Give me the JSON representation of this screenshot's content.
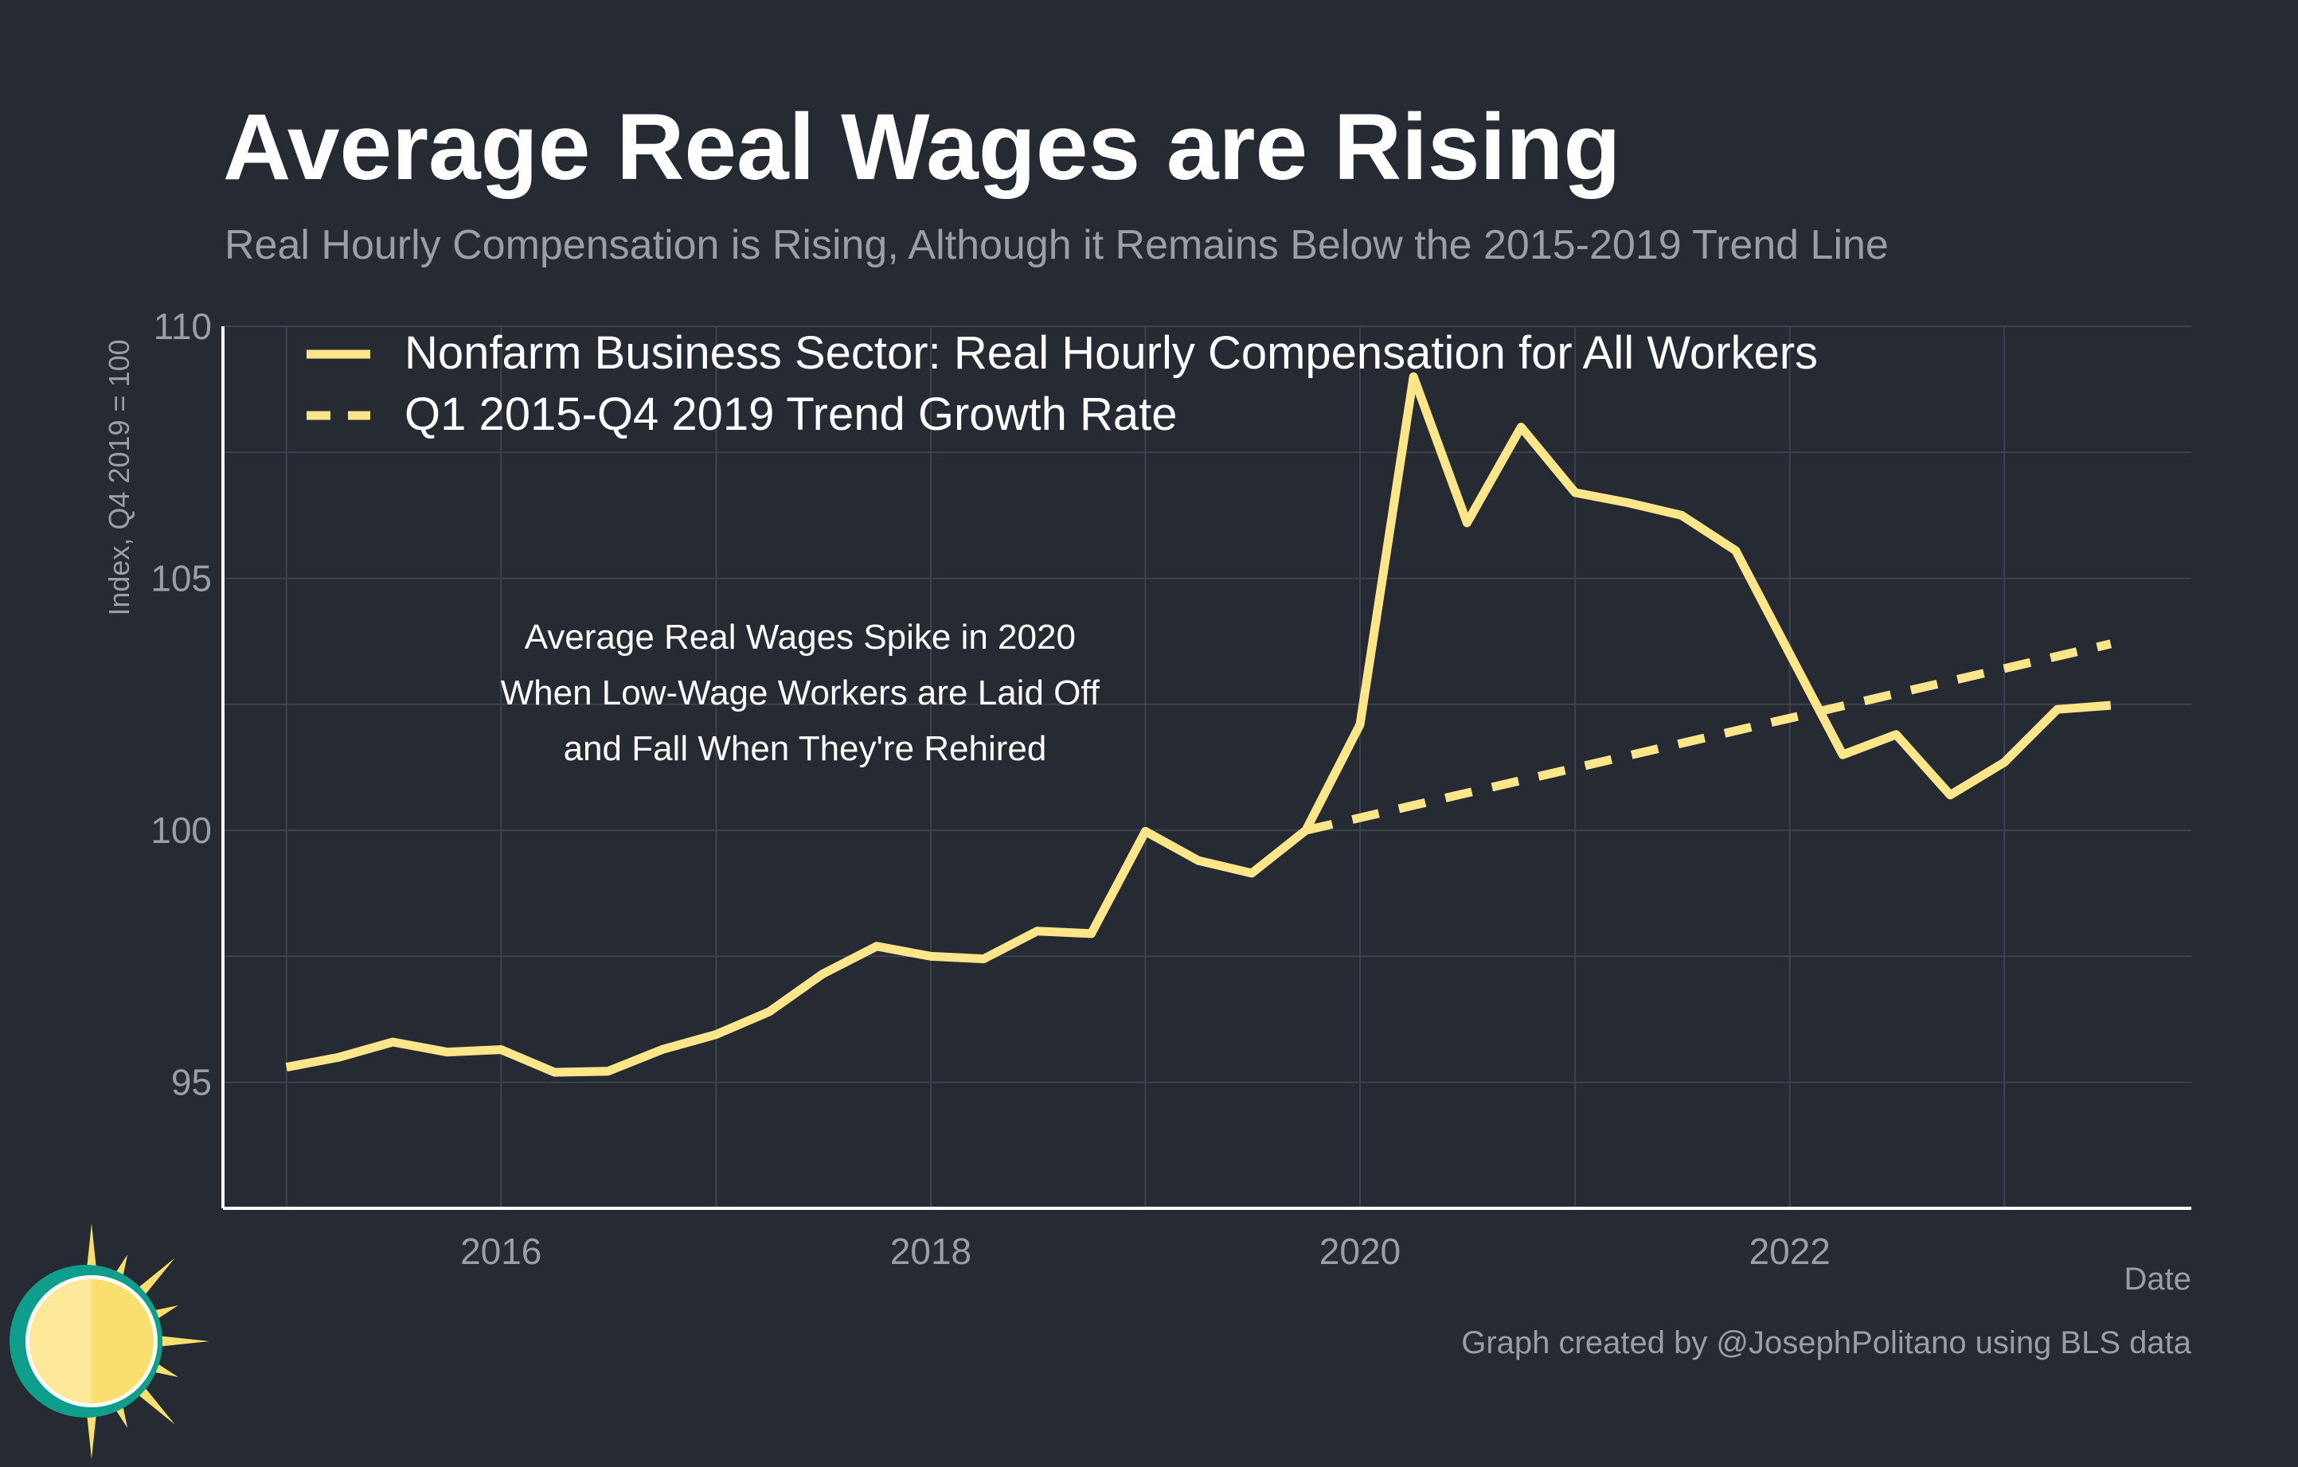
{
  "header": {
    "title": "Average Real Wages are Rising",
    "subtitle": "Real Hourly Compensation is Rising, Although it Remains Below the 2015-2019 Trend Line"
  },
  "footer": {
    "credit": "Graph created by @JosephPolitano using BLS data"
  },
  "colors": {
    "background": "#252a33",
    "series": "#fde68a",
    "grid": "#3d434d",
    "axis": "#ffffff",
    "muted_text": "#9a9ea6",
    "logo_ring": "#0f9e8c",
    "logo_sun": "#f9df6d"
  },
  "logo": {
    "icon": "sun-logo-icon"
  },
  "chart_data": {
    "type": "line",
    "xlabel": "Date",
    "ylabel": "Index, Q4 2019 = 100",
    "xlim": [
      "2014-09-15",
      "2023-11-15"
    ],
    "ylim": [
      92.5,
      110
    ],
    "x_ticks": [
      {
        "date": "2016-01-01",
        "label": "2016"
      },
      {
        "date": "2018-01-01",
        "label": "2018"
      },
      {
        "date": "2020-01-01",
        "label": "2020"
      },
      {
        "date": "2022-01-01",
        "label": "2022"
      }
    ],
    "y_ticks": [
      95,
      100,
      105,
      110
    ],
    "grid": true,
    "legend_position": "top-left",
    "annotation": {
      "lines": [
        "Average Real Wages Spike in 2020",
        "When Low-Wage Workers are Laid Off",
        "and Fall When They're Rehired"
      ],
      "at": {
        "date": "2017-06-01",
        "value": 103.6
      }
    },
    "series": [
      {
        "name": "Nonfarm Business Sector: Real Hourly Compensation for All Workers",
        "style": "solid",
        "points": [
          [
            "2015-01-01",
            95.3
          ],
          [
            "2015-04-01",
            95.5
          ],
          [
            "2015-07-01",
            95.8
          ],
          [
            "2015-10-01",
            95.6
          ],
          [
            "2016-01-01",
            95.65
          ],
          [
            "2016-04-01",
            95.2
          ],
          [
            "2016-07-01",
            95.22
          ],
          [
            "2016-10-01",
            95.65
          ],
          [
            "2017-01-01",
            95.95
          ],
          [
            "2017-04-01",
            96.4
          ],
          [
            "2017-07-01",
            97.15
          ],
          [
            "2017-10-01",
            97.7
          ],
          [
            "2018-01-01",
            97.5
          ],
          [
            "2018-04-01",
            97.45
          ],
          [
            "2018-07-01",
            98.0
          ],
          [
            "2018-10-01",
            97.95
          ],
          [
            "2019-01-01",
            99.98
          ],
          [
            "2019-04-01",
            99.4
          ],
          [
            "2019-07-01",
            99.15
          ],
          [
            "2019-10-01",
            100.0
          ],
          [
            "2020-01-01",
            102.1
          ],
          [
            "2020-04-01",
            109.0
          ],
          [
            "2020-07-01",
            106.1
          ],
          [
            "2020-10-01",
            108.0
          ],
          [
            "2021-01-01",
            106.7
          ],
          [
            "2021-04-01",
            106.5
          ],
          [
            "2021-07-01",
            106.25
          ],
          [
            "2021-10-01",
            105.55
          ],
          [
            "2022-01-01",
            103.5
          ],
          [
            "2022-04-01",
            101.5
          ],
          [
            "2022-07-01",
            101.9
          ],
          [
            "2022-10-01",
            100.7
          ],
          [
            "2023-01-01",
            101.35
          ],
          [
            "2023-04-01",
            102.4
          ],
          [
            "2023-07-01",
            102.48
          ]
        ]
      },
      {
        "name": "Q1 2015-Q4 2019 Trend Growth Rate",
        "style": "dashed",
        "points": [
          [
            "2019-10-01",
            100.0
          ],
          [
            "2023-07-01",
            103.7
          ]
        ]
      }
    ]
  }
}
